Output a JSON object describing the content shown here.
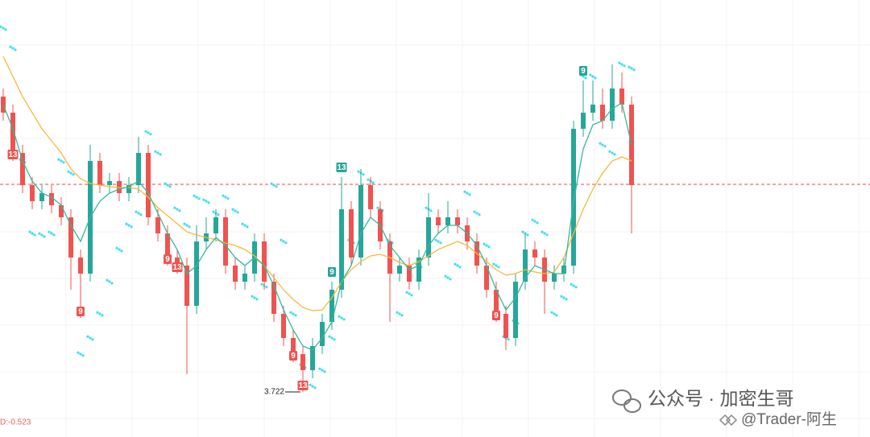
{
  "chart_data": {
    "type": "candlestick",
    "ylim": [
      3.61,
      4.696
    ],
    "up_color": "#26a69a",
    "down_color": "#ef5350",
    "grid": true,
    "open": [
      4.456,
      4.416,
      4.316,
      4.236,
      4.196,
      4.216,
      4.186,
      4.156,
      4.056,
      4.016,
      4.296,
      4.236,
      4.246,
      4.216,
      4.236,
      4.316,
      4.156,
      4.116,
      4.056,
      4.036,
      3.936,
      4.096,
      4.116,
      4.156,
      4.036,
      3.996,
      4.016,
      4.096,
      3.996,
      3.916,
      3.856,
      3.816,
      3.776,
      3.836,
      3.896,
      3.976,
      4.176,
      4.056,
      4.236,
      4.176,
      4.096,
      4.016,
      4.036,
      3.996,
      4.056,
      4.156,
      4.136,
      4.156,
      4.136,
      4.096,
      4.036,
      3.976,
      3.916,
      3.856,
      3.996,
      4.076,
      4.056,
      3.996,
      4.016,
      4.036,
      4.376,
      4.416,
      4.436,
      4.396,
      4.476,
      4.436
    ],
    "high": [
      4.476,
      4.436,
      4.336,
      4.256,
      4.236,
      4.236,
      4.206,
      4.176,
      4.076,
      4.336,
      4.316,
      4.266,
      4.266,
      4.256,
      4.356,
      4.336,
      4.176,
      4.136,
      4.076,
      4.056,
      4.136,
      4.156,
      4.176,
      4.176,
      4.056,
      4.036,
      4.116,
      4.116,
      4.016,
      3.936,
      3.876,
      3.836,
      3.856,
      3.916,
      3.996,
      4.256,
      4.196,
      4.276,
      4.256,
      4.196,
      4.116,
      4.056,
      4.056,
      4.076,
      4.216,
      4.176,
      4.196,
      4.176,
      4.156,
      4.116,
      4.056,
      3.996,
      3.936,
      4.016,
      4.116,
      4.096,
      4.076,
      4.036,
      4.056,
      4.396,
      4.496,
      4.496,
      4.476,
      4.536,
      4.516,
      4.456
    ],
    "low": [
      4.396,
      4.296,
      4.216,
      4.176,
      4.176,
      4.166,
      4.136,
      3.976,
      3.906,
      3.996,
      4.216,
      4.216,
      4.196,
      4.196,
      4.216,
      4.136,
      4.096,
      4.036,
      4.016,
      3.766,
      3.916,
      4.076,
      4.096,
      4.016,
      3.976,
      3.976,
      3.996,
      3.976,
      3.896,
      3.836,
      3.796,
      3.722,
      3.756,
      3.816,
      3.876,
      3.956,
      4.036,
      4.036,
      4.156,
      4.076,
      3.896,
      3.996,
      3.976,
      3.976,
      4.036,
      4.116,
      4.116,
      4.116,
      4.076,
      4.016,
      3.956,
      3.896,
      3.826,
      3.836,
      3.976,
      4.036,
      3.916,
      3.976,
      3.996,
      4.016,
      4.356,
      4.396,
      4.376,
      4.376,
      4.416,
      4.116
    ],
    "close": [
      4.416,
      4.316,
      4.236,
      4.196,
      4.216,
      4.186,
      4.156,
      4.056,
      4.016,
      4.296,
      4.236,
      4.246,
      4.216,
      4.236,
      4.316,
      4.156,
      4.116,
      4.056,
      4.036,
      3.936,
      4.096,
      4.116,
      4.156,
      4.036,
      3.996,
      4.016,
      4.096,
      3.996,
      3.916,
      3.856,
      3.816,
      3.776,
      3.836,
      3.896,
      3.976,
      4.176,
      4.056,
      4.236,
      4.176,
      4.096,
      4.016,
      4.036,
      3.996,
      4.056,
      4.156,
      4.136,
      4.156,
      4.136,
      4.096,
      4.036,
      3.976,
      3.916,
      3.856,
      3.996,
      4.076,
      4.056,
      3.996,
      4.016,
      4.036,
      4.376,
      4.416,
      4.436,
      4.396,
      4.476,
      4.436,
      4.236
    ],
    "lines": [
      {
        "color": "#f6b93b",
        "values": [
          4.556,
          4.506,
          4.456,
          4.416,
          4.376,
          4.346,
          4.316,
          4.276,
          4.252,
          4.24,
          4.236,
          4.232,
          4.23,
          4.23,
          4.226,
          4.206,
          4.18,
          4.16,
          4.14,
          4.12,
          4.112,
          4.106,
          4.1,
          4.092,
          4.086,
          4.076,
          4.06,
          4.036,
          4.006,
          3.976,
          3.952,
          3.932,
          3.924,
          3.926,
          3.956,
          3.996,
          4.026,
          4.046,
          4.06,
          4.064,
          4.056,
          4.044,
          4.036,
          4.046,
          4.06,
          4.076,
          4.086,
          4.096,
          4.086,
          4.066,
          4.046,
          4.026,
          4.012,
          4.016,
          4.026,
          4.02,
          4.016,
          4.02,
          4.056,
          4.116,
          4.176,
          4.226,
          4.266,
          4.296,
          4.306,
          4.296
        ]
      },
      {
        "color": "#35b89c",
        "values": [
          4.436,
          4.376,
          4.296,
          4.246,
          4.216,
          4.206,
          4.186,
          4.136,
          4.096,
          4.156,
          4.196,
          4.216,
          4.226,
          4.232,
          4.246,
          4.216,
          4.166,
          4.116,
          4.076,
          4.016,
          4.036,
          4.076,
          4.106,
          4.086,
          4.056,
          4.036,
          4.056,
          4.036,
          3.986,
          3.926,
          3.876,
          3.836,
          3.826,
          3.856,
          3.896,
          3.996,
          4.036,
          4.116,
          4.156,
          4.136,
          4.086,
          4.056,
          4.026,
          4.036,
          4.086,
          4.116,
          4.136,
          4.136,
          4.116,
          4.086,
          4.036,
          3.976,
          3.926,
          3.956,
          4.006,
          4.036,
          4.026,
          4.016,
          4.016,
          4.196,
          4.326,
          4.386,
          4.396,
          4.426,
          4.44,
          4.336
        ]
      }
    ],
    "sar": {
      "color": "#3fe0ee",
      "values": [
        4.626,
        4.576,
        4.296,
        4.116,
        4.112,
        4.116,
        4.296,
        4.266,
        3.816,
        3.856,
        3.916,
        3.996,
        4.076,
        4.136,
        4.166,
        4.366,
        4.316,
        4.236,
        4.176,
        4.136,
        4.206,
        4.196,
        4.166,
        4.206,
        4.172,
        4.136,
        3.956,
        3.986,
        4.236,
        4.096,
        3.916,
        3.786,
        3.736,
        3.776,
        3.856,
        3.906,
        4.096,
        4.266,
        4.246,
        4.176,
        4.096,
        3.916,
        3.966,
        4.036,
        4.176,
        4.096,
        4.006,
        4.036,
        4.216,
        4.166,
        4.086,
        4.036,
        3.856,
        3.896,
        4.116,
        4.146,
        4.116,
        3.916,
        3.956,
        3.986,
        4.506,
        4.506,
        4.336,
        4.316,
        4.536,
        4.526
      ]
    },
    "price_line": {
      "value": 4.238,
      "color": "#ef5350"
    },
    "markers": [
      {
        "index": 1,
        "text": "13",
        "color": "#ef5350"
      },
      {
        "index": 8,
        "text": "9",
        "color": "#ef5350"
      },
      {
        "index": 17,
        "text": "9",
        "color": "#ef5350"
      },
      {
        "index": 18,
        "text": "13",
        "color": "#ef5350"
      },
      {
        "index": 30,
        "text": "9",
        "color": "#ef5350"
      },
      {
        "index": 31,
        "text": "13",
        "color": "#ef5350"
      },
      {
        "index": 34,
        "text": "9",
        "color": "#26a69a"
      },
      {
        "index": 35,
        "text": "13",
        "color": "#26a69a"
      },
      {
        "index": 51,
        "text": "9",
        "color": "#ef5350"
      },
      {
        "index": 60,
        "text": "9",
        "color": "#26a69a"
      }
    ],
    "low_label_index": 31,
    "indicator_label": "D:-0.523"
  },
  "watermark": {
    "title": "公众号 · 加密生哥",
    "handle": "@Trader-阿生"
  }
}
